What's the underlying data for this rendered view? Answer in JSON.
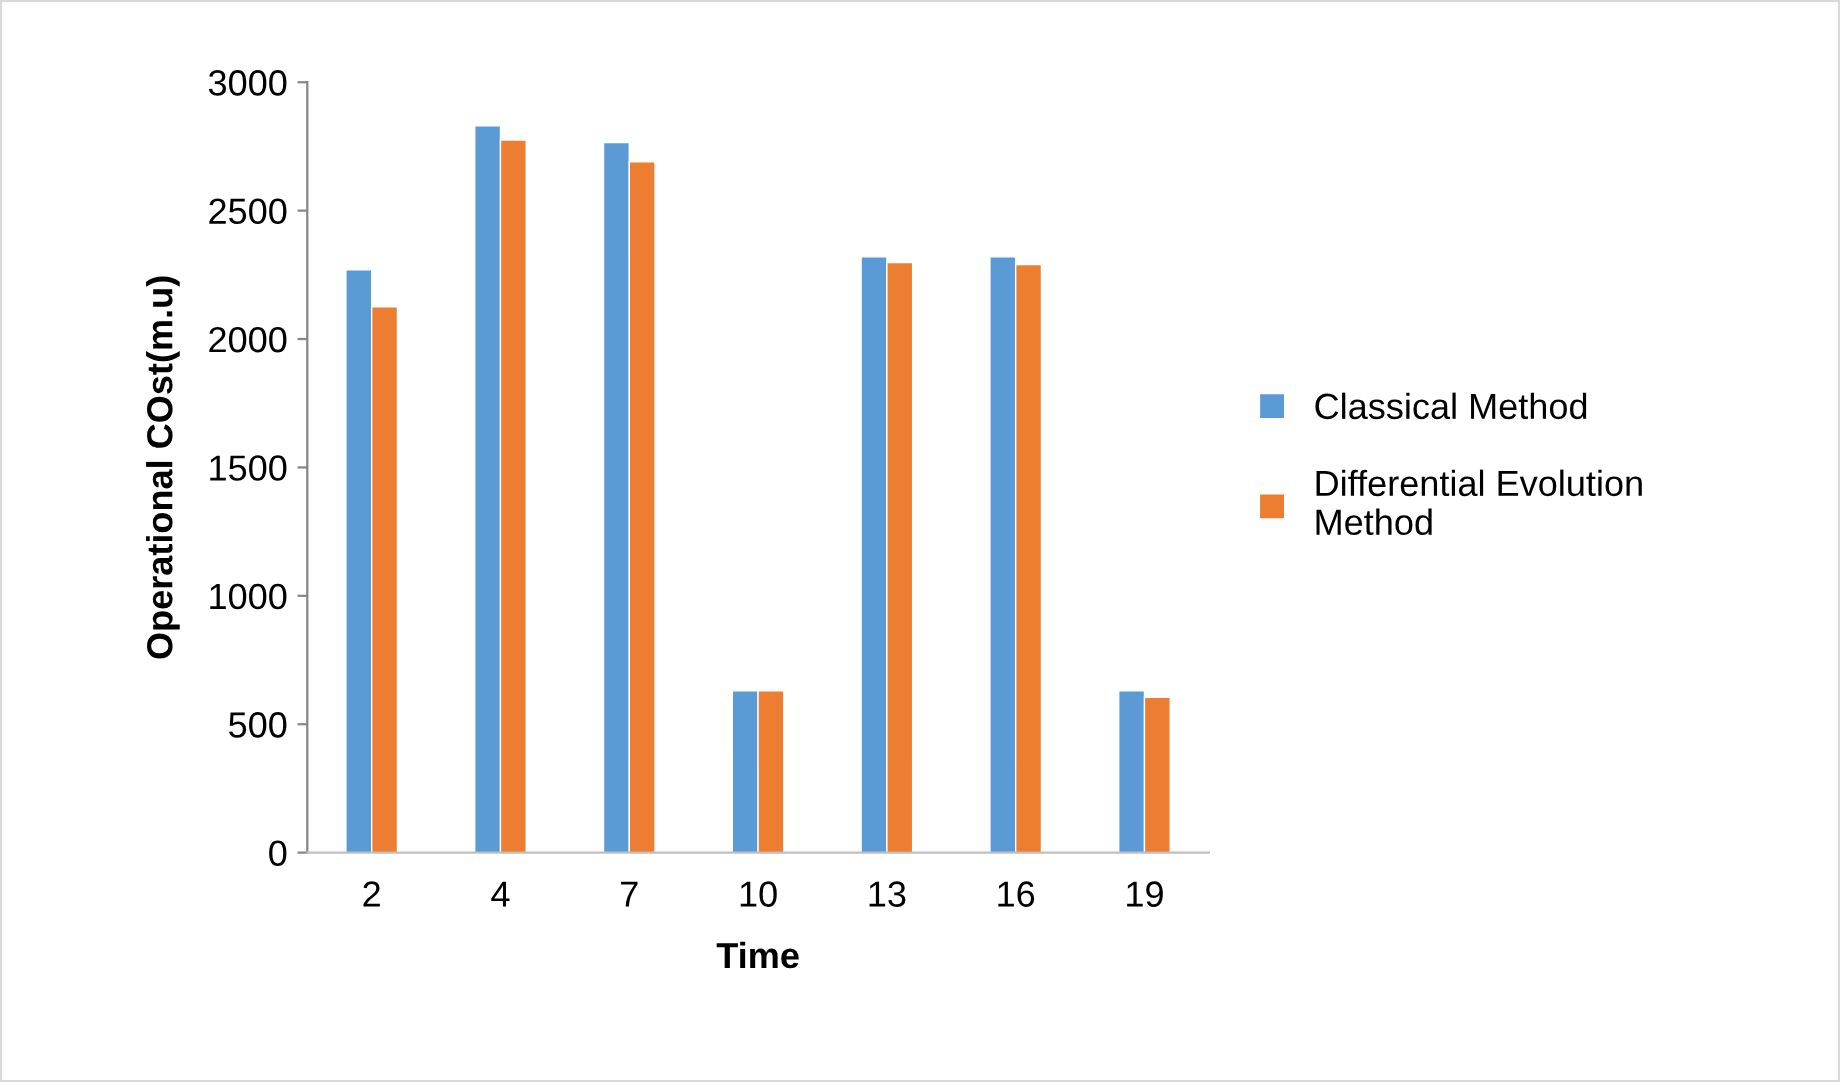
{
  "chart_data": {
    "type": "bar",
    "xlabel": "Time",
    "ylabel": "Operational COst(m.u)",
    "categories": [
      "2",
      "4",
      "7",
      "10",
      "13",
      "16",
      "19"
    ],
    "series": [
      {
        "name": "Classical Method",
        "color": "#5b9bd5",
        "values": [
          2270,
          2830,
          2765,
          630,
          2320,
          2320,
          630
        ]
      },
      {
        "name": "Differential Evolution Method",
        "color": "#ed7d31",
        "values": [
          2125,
          2775,
          2690,
          630,
          2298,
          2290,
          605
        ]
      }
    ],
    "ylim": [
      0,
      3000
    ],
    "yticks": [
      0,
      500,
      1000,
      1500,
      2000,
      2500,
      3000
    ],
    "grid": false,
    "legend": "right"
  }
}
